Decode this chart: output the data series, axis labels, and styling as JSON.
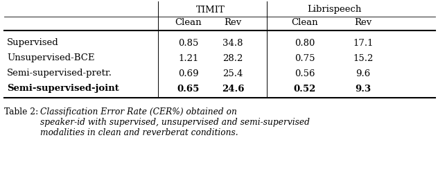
{
  "title": "Table 2:",
  "caption_italic": "Classification Error Rate (CER%) obtained on\nspeaker-id with supervised, unsupervised and semi-supervised\nmodalities in clean and reverberat conditions.",
  "header_group1": "TIMIT",
  "header_group2": "Librispeech",
  "col_headers": [
    "Clean",
    "Rev",
    "Clean",
    "Rev"
  ],
  "row_labels": [
    "Supervised",
    "Unsupervised-BCE",
    "Semi-supervised-pretr.",
    "Semi-supervised-joint"
  ],
  "row_bold": [
    false,
    false,
    false,
    true
  ],
  "data": [
    [
      "0.85",
      "34.8",
      "0.80",
      "17.1"
    ],
    [
      "1.21",
      "28.2",
      "0.75",
      "15.2"
    ],
    [
      "0.69",
      "25.4",
      "0.56",
      "9.6"
    ],
    [
      "0.65",
      "24.6",
      "0.52",
      "9.3"
    ]
  ],
  "data_bold": [
    [
      false,
      false,
      false,
      false
    ],
    [
      false,
      false,
      false,
      false
    ],
    [
      false,
      false,
      false,
      false
    ],
    [
      true,
      true,
      true,
      true
    ]
  ],
  "bg_color": "#ffffff",
  "text_color": "#000000",
  "font_size": 9.5,
  "caption_font_size": 8.8
}
